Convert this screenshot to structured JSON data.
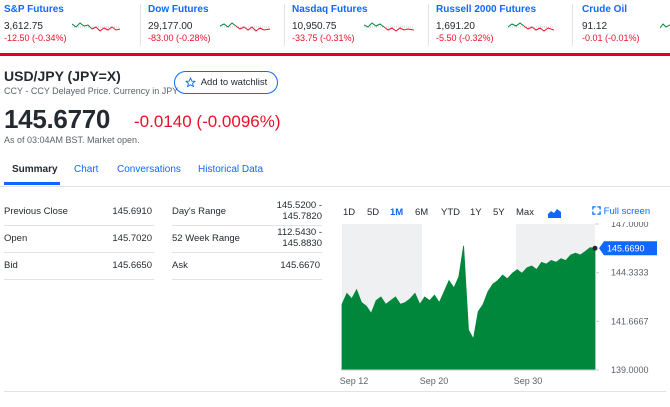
{
  "tickers": [
    {
      "name": "S&P Futures",
      "price": "3,612.75",
      "change": "-12.50 (-0.34%)"
    },
    {
      "name": "Dow Futures",
      "price": "29,177.00",
      "change": "-83.00 (-0.28%)"
    },
    {
      "name": "Nasdaq Futures",
      "price": "10,950.75",
      "change": "-33.75 (-0.31%)"
    },
    {
      "name": "Russell 2000 Futures",
      "price": "1,691.20",
      "change": "-5.50 (-0.32%)"
    },
    {
      "name": "Crude Oil",
      "price": "91.12",
      "change": "-0.01 (-0.01%)"
    }
  ],
  "quote": {
    "title": "USD/JPY (JPY=X)",
    "subtitle": "CCY - CCY Delayed Price. Currency in JPY",
    "watchlist_label": "Add to watchlist",
    "price": "145.6770",
    "change": "-0.0140",
    "change_pct": "(-0.0096%)",
    "as_of": "As of 03:04AM BST. Market open."
  },
  "tabs": [
    "Summary",
    "Chart",
    "Conversations",
    "Historical Data"
  ],
  "summary": {
    "rows": [
      {
        "label1": "Previous Close",
        "value1": "145.6910",
        "label2": "Day's Range",
        "value2a": "145.5200 -",
        "value2b": "145.7820"
      },
      {
        "label1": "Open",
        "value1": "145.7020",
        "label2": "52 Week Range",
        "value2a": "112.5430 -",
        "value2b": "145.8830"
      },
      {
        "label1": "Bid",
        "value1": "145.6650",
        "label2": "Ask",
        "value2a": "145.6670",
        "value2b": ""
      }
    ]
  },
  "chart_controls": {
    "ranges": [
      "1D",
      "5D",
      "1M",
      "6M",
      "YTD",
      "1Y",
      "5Y",
      "Max"
    ],
    "active": "1M",
    "fullscreen": "Full screen"
  },
  "chart_data": {
    "type": "area",
    "y_ticks": [
      "147.0000",
      "144.3333",
      "141.6667",
      "139.0000"
    ],
    "ylim": [
      139.0,
      147.0
    ],
    "x_ticks": [
      "Sep 12",
      "Sep 20",
      "Sep 30"
    ],
    "current_label": "145.6690",
    "current_value": 145.669,
    "fill_color": "#00873c",
    "values": [
      142.6,
      143.2,
      142.9,
      143.4,
      142.7,
      142.5,
      142.1,
      142.8,
      143.0,
      142.6,
      142.8,
      143.0,
      142.6,
      142.7,
      142.9,
      143.2,
      142.6,
      143.0,
      142.8,
      143.1,
      142.7,
      143.3,
      143.9,
      143.5,
      144.1,
      145.8,
      141.2,
      140.7,
      142.2,
      142.6,
      143.3,
      143.7,
      143.9,
      144.2,
      144.0,
      144.3,
      144.5,
      144.3,
      144.6,
      144.7,
      144.5,
      144.9,
      144.8,
      145.0,
      144.9,
      145.1,
      145.0,
      145.3,
      145.4,
      145.3,
      145.5,
      145.7,
      145.669
    ]
  },
  "colors": {
    "accent": "#0f69ff",
    "negative": "#eb0f29",
    "positive": "#00873c"
  }
}
